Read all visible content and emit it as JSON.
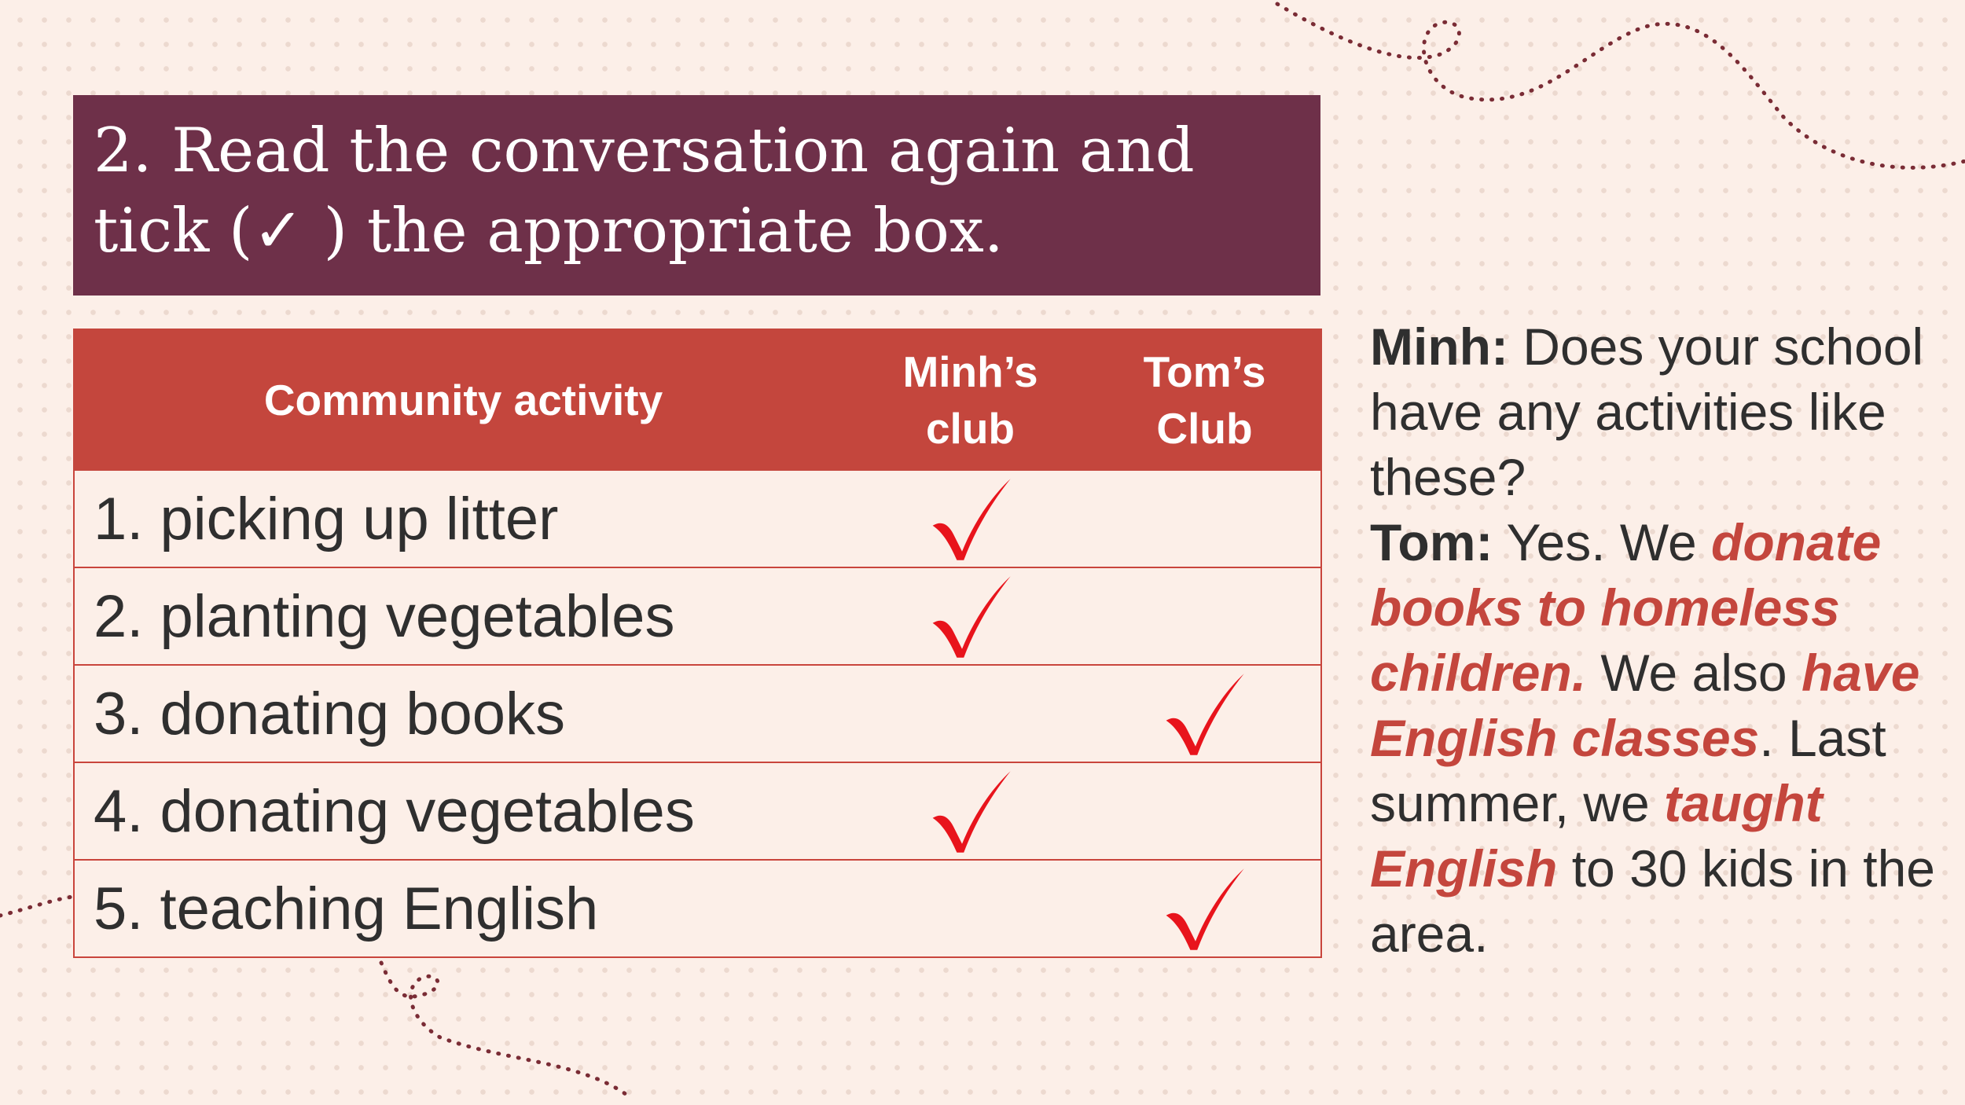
{
  "title": "2. Read the conversation again and\ntick (✓ ) the appropriate box.",
  "table": {
    "headers": [
      "Community activity",
      "Minh’s club",
      "Tom’s Club"
    ],
    "rows": [
      {
        "activity": "1. picking up litter",
        "minh": true,
        "tom": false
      },
      {
        "activity": "2. planting vegetables",
        "minh": true,
        "tom": false
      },
      {
        "activity": "3. donating books",
        "minh": false,
        "tom": true
      },
      {
        "activity": "4. donating vegetables",
        "minh": true,
        "tom": false
      },
      {
        "activity": "5. teaching English",
        "minh": false,
        "tom": true
      }
    ]
  },
  "dialogue": {
    "minh_label": "Minh:",
    "minh_text": " Does your school have any activities like these?",
    "tom_label": "Tom:",
    "tom_text_1": " Yes. We ",
    "tom_hl_1": "donate books to homeless children.",
    "tom_text_2": " We also ",
    "tom_hl_2": "have English classes",
    "tom_text_3": ". Last summer, we ",
    "tom_hl_3": "taught English",
    "tom_text_4": " to 30 kids in the area."
  },
  "colors": {
    "title_bg": "#6e3049",
    "header_bg": "#c4463d",
    "tick": "#e8141c",
    "highlight": "#c4463d",
    "background": "#fcefe8"
  },
  "icons": {
    "tick": "check-mark-icon"
  }
}
